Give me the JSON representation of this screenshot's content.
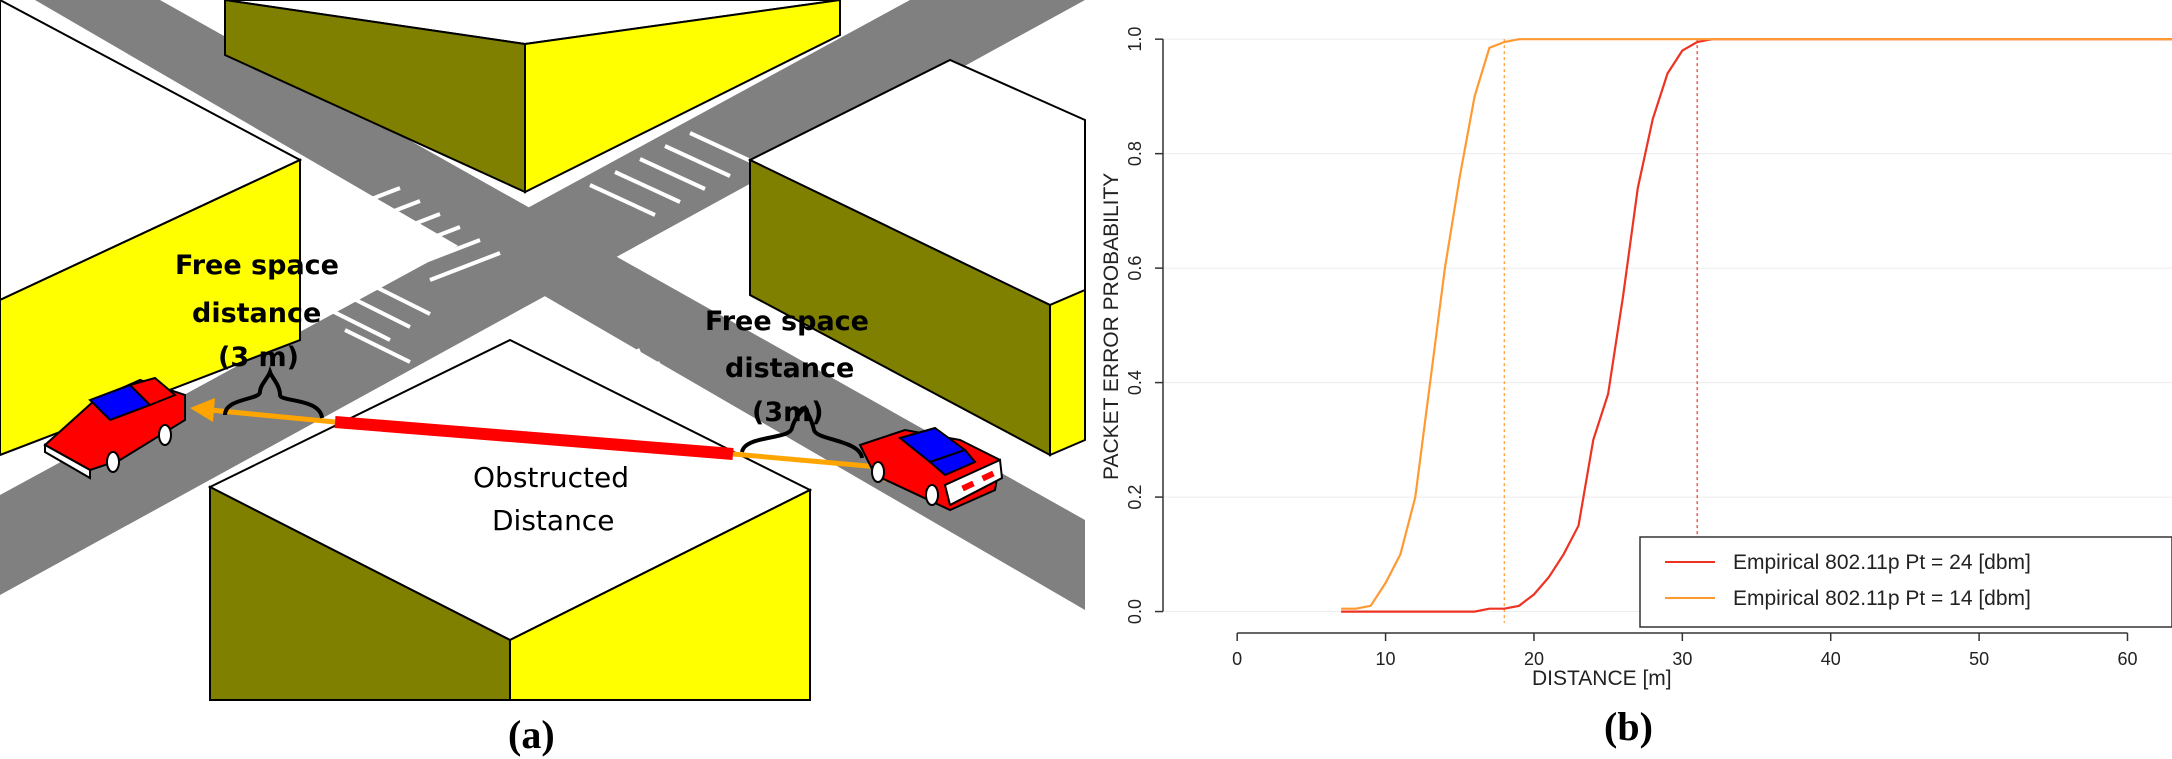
{
  "panel_a": {
    "caption": "(a)",
    "free_space_left": [
      "Free space",
      "distance",
      "(3 m)"
    ],
    "free_space_right": [
      "Free space",
      "distance",
      "(3m)"
    ],
    "obstructed": [
      "Obstructed",
      "Distance"
    ],
    "colors": {
      "building_top": "#ffffff",
      "building_yellow": "#ffff00",
      "building_olive": "#808000",
      "road": "#808080",
      "car_body": "#ff0000",
      "car_roof": "#0000ff",
      "arrow": "#ffa500",
      "obstructed_line": "#ff0000"
    }
  },
  "panel_b": {
    "caption": "(b)",
    "chart_data": {
      "type": "line",
      "xlabel": "DISTANCE [m]",
      "ylabel": "PACKET ERROR PROBABILITY",
      "xlim": [
        -5,
        63
      ],
      "ylim": [
        -0.02,
        1.03
      ],
      "xticks": [
        "0",
        "10",
        "20",
        "30",
        "40",
        "50",
        "60"
      ],
      "yticks": [
        "0.0",
        "0.2",
        "0.4",
        "0.6",
        "0.8",
        "1.0"
      ],
      "legend_position": "bottom-right",
      "series": [
        {
          "name": "Empirical 802.11p Pt = 24 [dbm]",
          "color": "#ee3322",
          "threshold_x": 31,
          "x": [
            7,
            9,
            11,
            13,
            15,
            16,
            17,
            18,
            19,
            20,
            21,
            22,
            23,
            24,
            25,
            26,
            27,
            28,
            29,
            30,
            31,
            32,
            40,
            50,
            63
          ],
          "y": [
            0.0,
            0.0,
            0.0,
            0.0,
            0.0,
            0.0,
            0.005,
            0.005,
            0.01,
            0.03,
            0.06,
            0.1,
            0.15,
            0.3,
            0.38,
            0.55,
            0.74,
            0.86,
            0.94,
            0.98,
            0.995,
            1.0,
            1.0,
            1.0,
            1.0
          ]
        },
        {
          "name": "Empirical 802.11p Pt = 14 [dbm]",
          "color": "#ff9a33",
          "threshold_x": 18,
          "x": [
            7,
            8,
            9,
            10,
            11,
            12,
            13,
            14,
            15,
            16,
            17,
            18,
            19,
            20,
            30,
            40,
            50,
            63
          ],
          "y": [
            0.005,
            0.005,
            0.01,
            0.05,
            0.1,
            0.2,
            0.4,
            0.6,
            0.76,
            0.9,
            0.985,
            0.995,
            1.0,
            1.0,
            1.0,
            1.0,
            1.0,
            1.0
          ]
        }
      ]
    }
  }
}
